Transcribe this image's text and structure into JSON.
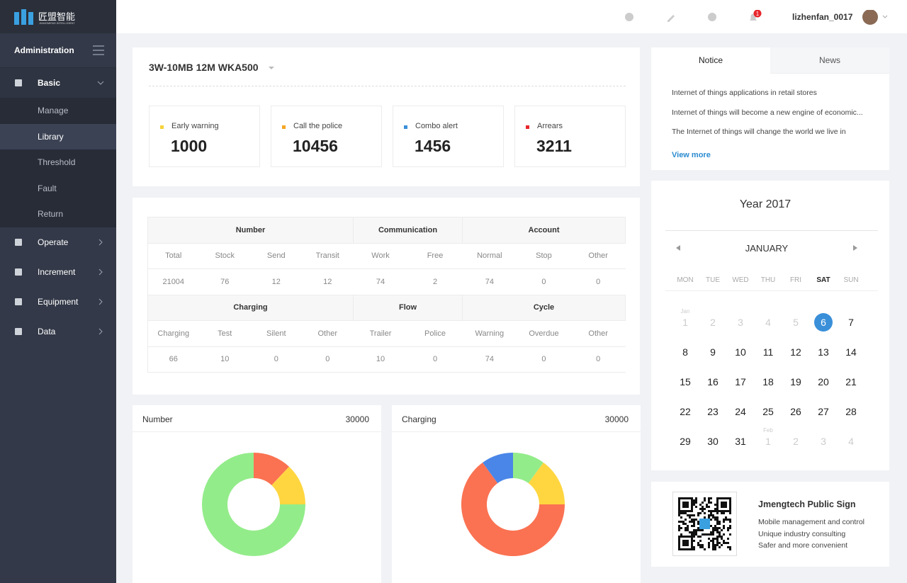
{
  "sidebar": {
    "brand": "匠盟智能",
    "brand_sub": "JIANGMENG INTELLIGENT",
    "title": "Administration",
    "menu": [
      {
        "label": "Basic",
        "children": [
          "Manage",
          "Library",
          "Threshold",
          "Fault",
          "Return"
        ],
        "active_child": 1
      },
      {
        "label": "Operate"
      },
      {
        "label": "Increment"
      },
      {
        "label": "Equipment"
      },
      {
        "label": "Data"
      }
    ]
  },
  "topbar": {
    "user": "lizhenfan_0017",
    "notifications": 1
  },
  "device": {
    "title": "3W-10MB 12M WKA500",
    "stats": [
      {
        "label": "Early warning",
        "value": 1000,
        "color": "#f5d33c"
      },
      {
        "label": "Call the police",
        "value": 10456,
        "color": "#f5a623"
      },
      {
        "label": "Combo alert",
        "value": 1456,
        "color": "#3a8fd9"
      },
      {
        "label": "Arrears",
        "value": 3211,
        "color": "#e8262b"
      }
    ]
  },
  "table": {
    "blocks": [
      {
        "groups": [
          {
            "name": "Number",
            "columns": [
              "Total",
              "Stock",
              "Send",
              "Transit"
            ],
            "values": [
              21004,
              76,
              12,
              12
            ]
          },
          {
            "name": "Communication",
            "columns": [
              "Work",
              "Free"
            ],
            "values": [
              74,
              2
            ]
          },
          {
            "name": "Account",
            "columns": [
              "Normal",
              "Stop",
              "Other"
            ],
            "values": [
              74,
              0,
              0
            ]
          }
        ]
      },
      {
        "groups": [
          {
            "name": "Charging",
            "columns": [
              "Charging",
              "Test",
              "Silent",
              "Other"
            ],
            "values": [
              66,
              10,
              0,
              0
            ]
          },
          {
            "name": "Flow",
            "columns": [
              "Trailer",
              "Police"
            ],
            "values": [
              10,
              0
            ]
          },
          {
            "name": "Cycle",
            "columns": [
              "Warning",
              "Overdue",
              "Other"
            ],
            "values": [
              74,
              0,
              0
            ]
          }
        ]
      }
    ]
  },
  "charts": [
    {
      "type": "donut",
      "title": "Number",
      "total": 30000,
      "segments": [
        {
          "value": 12,
          "color": "#fa7252"
        },
        {
          "value": 13,
          "color": "#ffd640"
        },
        {
          "value": 75,
          "color": "#93ec8a"
        }
      ]
    },
    {
      "type": "donut",
      "title": "Charging",
      "total": 30000,
      "segments": [
        {
          "value": 10,
          "color": "#93ec8a"
        },
        {
          "value": 15,
          "color": "#ffd640"
        },
        {
          "value": 65,
          "color": "#fa7252"
        },
        {
          "value": 10,
          "color": "#4a86e8"
        }
      ]
    }
  ],
  "notice": {
    "tabs": [
      "Notice",
      "News"
    ],
    "active_tab": 0,
    "items": [
      "Internet of things applications in retail stores",
      "Internet of things will become a new engine of economic...",
      "The Internet of things will change the world we live in"
    ],
    "more": "View more"
  },
  "calendar": {
    "year": "Year 2017",
    "month": "JANUARY",
    "weekdays": [
      "MON",
      "TUE",
      "WED",
      "THU",
      "FRI",
      "SAT",
      "SUN"
    ],
    "highlight_weekday": 5,
    "weeks": [
      [
        {
          "day": 1,
          "muted": true,
          "label": "Jan"
        },
        {
          "day": 2,
          "muted": true
        },
        {
          "day": 3,
          "muted": true
        },
        {
          "day": 4,
          "muted": true
        },
        {
          "day": 5,
          "muted": true
        },
        {
          "day": 6,
          "selected": true
        },
        {
          "day": 7
        }
      ],
      [
        {
          "day": 8
        },
        {
          "day": 9
        },
        {
          "day": 10
        },
        {
          "day": 11
        },
        {
          "day": 12
        },
        {
          "day": 13
        },
        {
          "day": 14
        }
      ],
      [
        {
          "day": 15
        },
        {
          "day": 16
        },
        {
          "day": 17
        },
        {
          "day": 18
        },
        {
          "day": 19
        },
        {
          "day": 20
        },
        {
          "day": 21
        }
      ],
      [
        {
          "day": 22
        },
        {
          "day": 23
        },
        {
          "day": 24
        },
        {
          "day": 25
        },
        {
          "day": 26
        },
        {
          "day": 27
        },
        {
          "day": 28
        }
      ],
      [
        {
          "day": 29
        },
        {
          "day": 30
        },
        {
          "day": 31
        },
        {
          "day": 1,
          "muted": true,
          "label": "Feb"
        },
        {
          "day": 2,
          "muted": true
        },
        {
          "day": 3,
          "muted": true
        },
        {
          "day": 4,
          "muted": true
        }
      ]
    ]
  },
  "qr": {
    "title": "Jmengtech Public Sign",
    "lines": [
      "Mobile management and control",
      "Unique industry consulting",
      "Safer and more convenient"
    ]
  }
}
